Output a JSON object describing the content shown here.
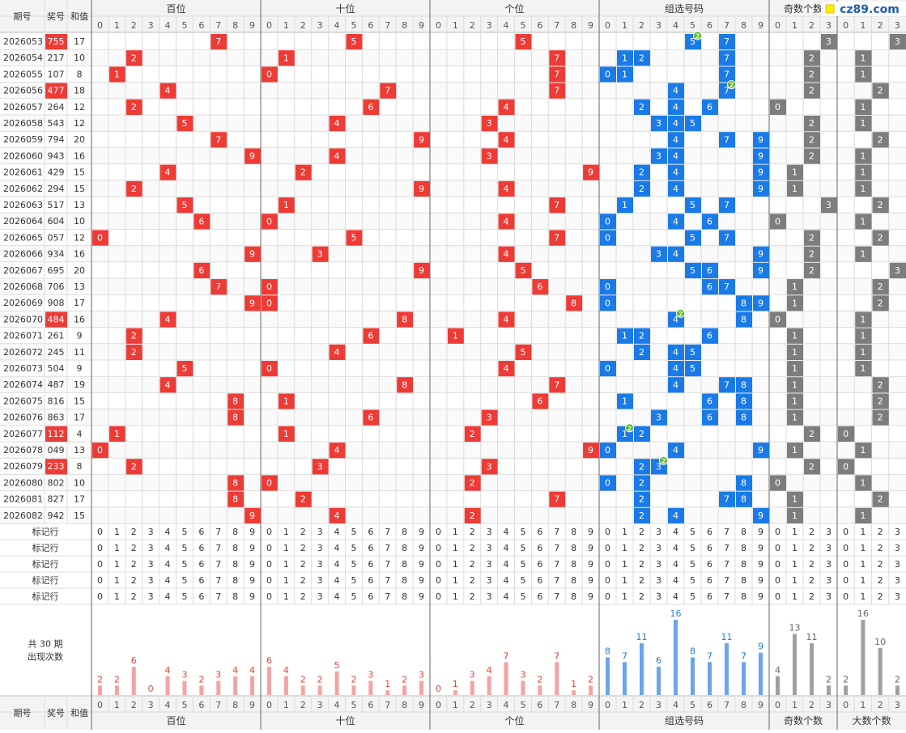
{
  "header": {
    "period_label": "期号",
    "award_label": "奖号",
    "sum_label": "和值",
    "groups": [
      "百位",
      "十位",
      "个位",
      "组选号码",
      "奇数个数",
      "大数个数"
    ]
  },
  "logo": {
    "text": "cz89.com"
  },
  "rows": [
    {
      "period": "2026053",
      "award": "755",
      "sum": "17",
      "hl": true
    },
    {
      "period": "2026054",
      "award": "217",
      "sum": "10",
      "hl": false
    },
    {
      "period": "2026055",
      "award": "107",
      "sum": "8",
      "hl": false
    },
    {
      "period": "2026056",
      "award": "477",
      "sum": "18",
      "hl": true
    },
    {
      "period": "2026057",
      "award": "264",
      "sum": "12",
      "hl": false
    },
    {
      "period": "2026058",
      "award": "543",
      "sum": "12",
      "hl": false
    },
    {
      "period": "2026059",
      "award": "794",
      "sum": "20",
      "hl": false
    },
    {
      "period": "2026060",
      "award": "943",
      "sum": "16",
      "hl": false
    },
    {
      "period": "2026061",
      "award": "429",
      "sum": "15",
      "hl": false
    },
    {
      "period": "2026062",
      "award": "294",
      "sum": "15",
      "hl": false
    },
    {
      "period": "2026063",
      "award": "517",
      "sum": "13",
      "hl": false
    },
    {
      "period": "2026064",
      "award": "604",
      "sum": "10",
      "hl": false
    },
    {
      "period": "2026065",
      "award": "057",
      "sum": "12",
      "hl": false
    },
    {
      "period": "2026066",
      "award": "934",
      "sum": "16",
      "hl": false
    },
    {
      "period": "2026067",
      "award": "695",
      "sum": "20",
      "hl": false
    },
    {
      "period": "2026068",
      "award": "706",
      "sum": "13",
      "hl": false
    },
    {
      "period": "2026069",
      "award": "908",
      "sum": "17",
      "hl": false
    },
    {
      "period": "2026070",
      "award": "484",
      "sum": "16",
      "hl": true
    },
    {
      "period": "2026071",
      "award": "261",
      "sum": "9",
      "hl": false
    },
    {
      "period": "2026072",
      "award": "245",
      "sum": "11",
      "hl": false
    },
    {
      "period": "2026073",
      "award": "504",
      "sum": "9",
      "hl": false
    },
    {
      "period": "2026074",
      "award": "487",
      "sum": "19",
      "hl": false
    },
    {
      "period": "2026075",
      "award": "816",
      "sum": "15",
      "hl": false
    },
    {
      "period": "2026076",
      "award": "863",
      "sum": "17",
      "hl": false
    },
    {
      "period": "2026077",
      "award": "112",
      "sum": "4",
      "hl": true
    },
    {
      "period": "2026078",
      "award": "049",
      "sum": "13",
      "hl": false
    },
    {
      "period": "2026079",
      "award": "233",
      "sum": "8",
      "hl": true
    },
    {
      "period": "2026080",
      "award": "802",
      "sum": "10",
      "hl": false
    },
    {
      "period": "2026081",
      "award": "827",
      "sum": "17",
      "hl": false
    },
    {
      "period": "2026082",
      "award": "942",
      "sum": "15",
      "hl": false
    }
  ],
  "marker_rows": {
    "label": "标记行",
    "count": 5
  },
  "stats": {
    "line1": "共 30 期",
    "line2": "出现次数"
  },
  "chart_data": {
    "type": "bar",
    "title": "",
    "panels": [
      {
        "name": "百位",
        "categories": [
          "0",
          "1",
          "2",
          "3",
          "4",
          "5",
          "6",
          "7",
          "8",
          "9"
        ],
        "values": [
          2,
          2,
          6,
          0,
          4,
          3,
          2,
          3,
          4,
          4
        ],
        "color": "#f4a3a3",
        "label_color": "#e8403a"
      },
      {
        "name": "十位",
        "categories": [
          "0",
          "1",
          "2",
          "3",
          "4",
          "5",
          "6",
          "7",
          "8",
          "9"
        ],
        "values": [
          6,
          4,
          2,
          2,
          5,
          2,
          3,
          1,
          2,
          3
        ],
        "color": "#f4a3a3",
        "label_color": "#e8403a"
      },
      {
        "name": "个位",
        "categories": [
          "0",
          "1",
          "2",
          "3",
          "4",
          "5",
          "6",
          "7",
          "8",
          "9"
        ],
        "values": [
          0,
          1,
          3,
          4,
          7,
          3,
          2,
          7,
          1,
          2
        ],
        "color": "#f4a3a3",
        "label_color": "#e8403a"
      },
      {
        "name": "组选号码",
        "categories": [
          "0",
          "1",
          "2",
          "3",
          "4",
          "5",
          "6",
          "7",
          "8",
          "9"
        ],
        "values": [
          8,
          7,
          11,
          6,
          16,
          8,
          7,
          11,
          7,
          9
        ],
        "color": "#6aa6ea",
        "label_color": "#2a7ad8"
      },
      {
        "name": "奇数个数",
        "categories": [
          "0",
          "1",
          "2",
          "3"
        ],
        "values": [
          4,
          13,
          11,
          2
        ],
        "color": "#a0a0a0",
        "label_color": "#666666"
      },
      {
        "name": "大数个数",
        "categories": [
          "0",
          "1",
          "2",
          "3"
        ],
        "values": [
          2,
          16,
          10,
          2
        ],
        "color": "#a0a0a0",
        "label_color": "#666666"
      }
    ],
    "repeat_markers": [
      {
        "row": "2026053",
        "digit": "5",
        "count": "2"
      },
      {
        "row": "2026056",
        "digit": "7",
        "count": "2"
      },
      {
        "row": "2026070",
        "digit": "4",
        "count": "2"
      },
      {
        "row": "2026077",
        "digit": "1",
        "count": "2"
      },
      {
        "row": "2026079",
        "digit": "3",
        "count": "2"
      }
    ],
    "colors": {
      "red": "#ee3b35",
      "blue": "#1a7be8",
      "gray": "#7d7d7d",
      "marker": "#52b91c"
    }
  }
}
